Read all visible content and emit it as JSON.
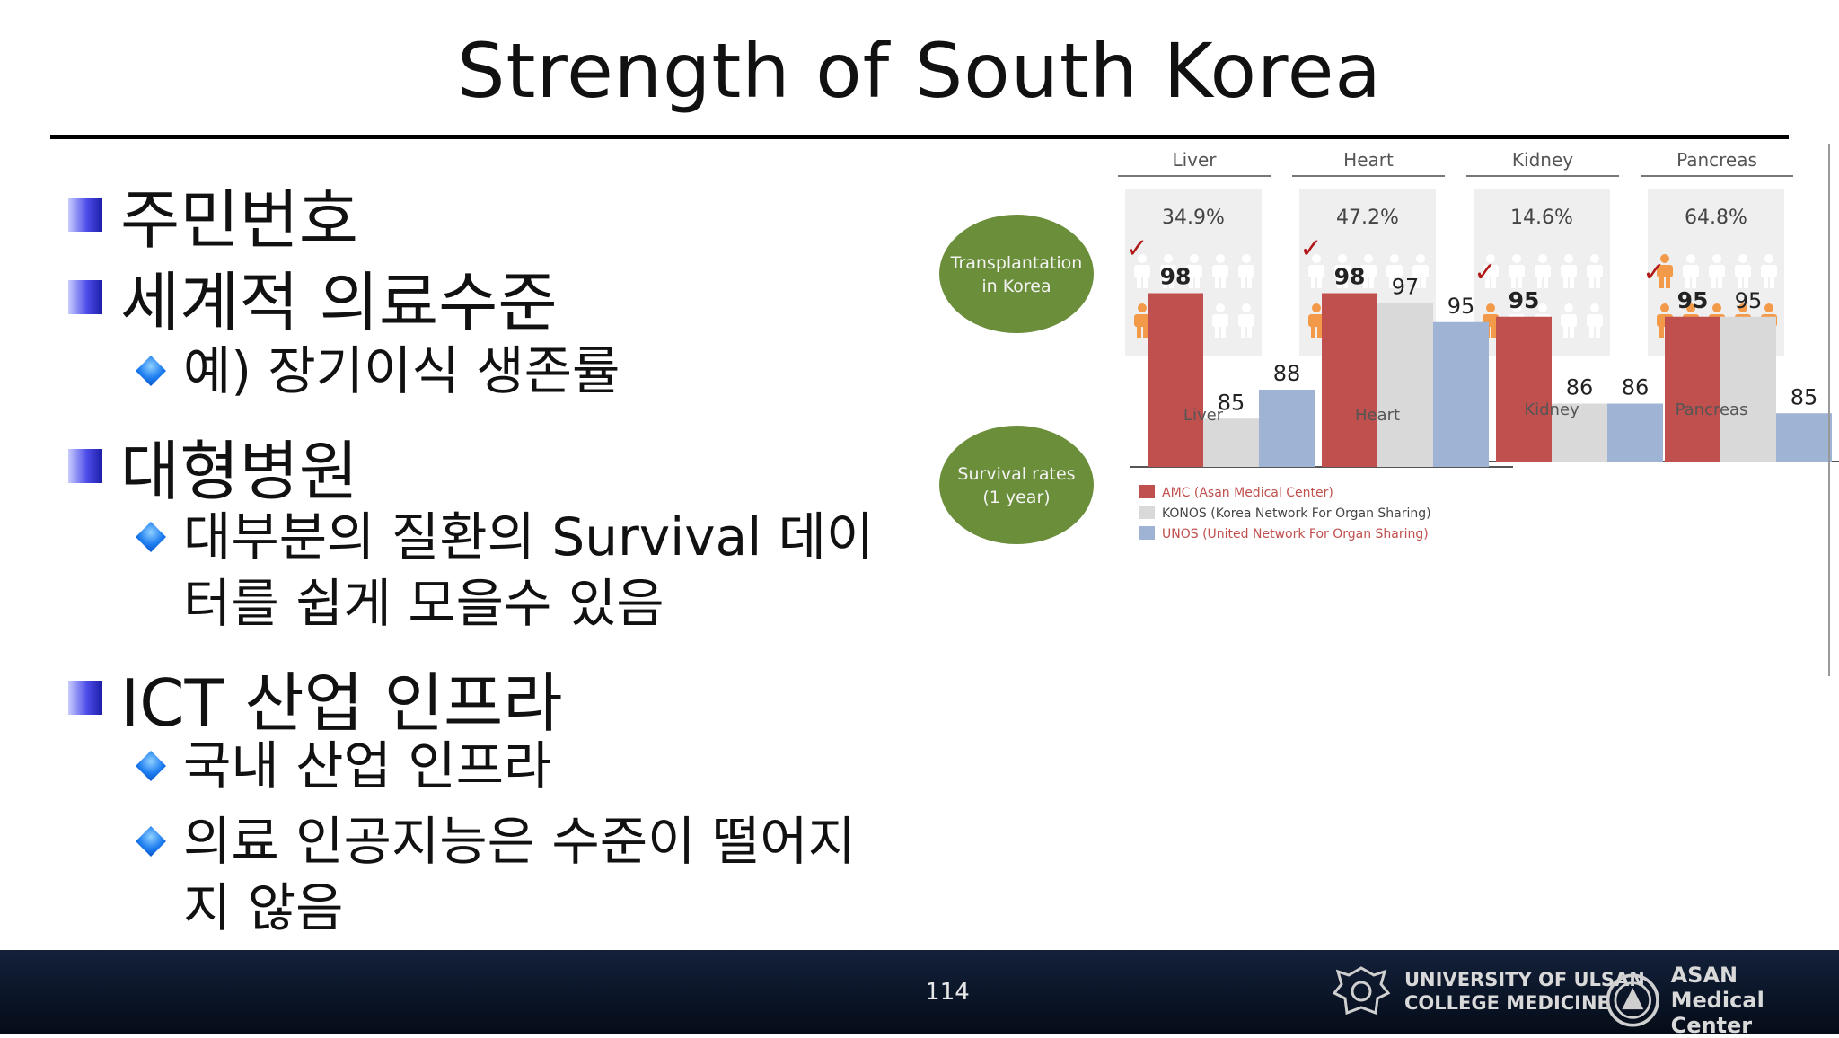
{
  "slide": {
    "title": "Strength of South Korea",
    "page_number": "114"
  },
  "bullets": [
    {
      "level": 1,
      "text": "주민번호"
    },
    {
      "level": 1,
      "text": "세계적 의료수준"
    },
    {
      "level": 2,
      "text": "예) 장기이식 생존률"
    },
    {
      "level": 1,
      "text": "대형병원"
    },
    {
      "level": 2,
      "text": "대부분의 질환의 Survival 데이",
      "cont": "터를 쉽게 모을수 있음"
    },
    {
      "level": 1,
      "text": "ICT 산업 인프라"
    },
    {
      "level": 2,
      "text": "국내 산업 인프라"
    },
    {
      "level": 2,
      "text": "의료 인공지능은 수준이 떨어지",
      "cont": "지 않음"
    }
  ],
  "figure": {
    "circle_transplant_line1": "Transplantation",
    "circle_transplant_line2": "in Korea",
    "circle_survival_line1": "Survival rates",
    "circle_survival_line2": "(1 year)",
    "colors": {
      "amc": "#c0504d",
      "konos": "#d9d9d9",
      "unos": "#9fb3d4",
      "person": "#f39a4a",
      "person_empty": "#ffffff",
      "circle": "#6b8e3a"
    }
  },
  "chart_data": {
    "type": "bar",
    "categories": [
      "Liver",
      "Heart",
      "Kidney",
      "Pancreas"
    ],
    "transplant_share": [
      "34.9%",
      "47.2%",
      "14.6%",
      "64.8%"
    ],
    "transplant_share_values": [
      34.9,
      47.2,
      14.6,
      64.8
    ],
    "series": [
      {
        "name": "AMC (Asan Medical Center)",
        "values": [
          98,
          98,
          95,
          95
        ],
        "labels": [
          "98",
          "98",
          "95",
          "95"
        ]
      },
      {
        "name": "KONOS (Korea Network For Organ Sharing)",
        "values": [
          85,
          97,
          86,
          95
        ],
        "labels": [
          "85",
          "97",
          "86",
          "95"
        ]
      },
      {
        "name": "UNOS (United Network For Organ Sharing)",
        "values": [
          88,
          95,
          86,
          85
        ],
        "labels": [
          "88",
          "95",
          "86",
          "85"
        ]
      }
    ],
    "checkmark": "✓",
    "legend_position": "bottom-left"
  },
  "footer": {
    "logo1_line1": "UNIVERSITY OF ULSAN",
    "logo1_line2": "COLLEGE MEDICINE",
    "logo2_line1": "ASAN",
    "logo2_line2": "Medical Center"
  }
}
